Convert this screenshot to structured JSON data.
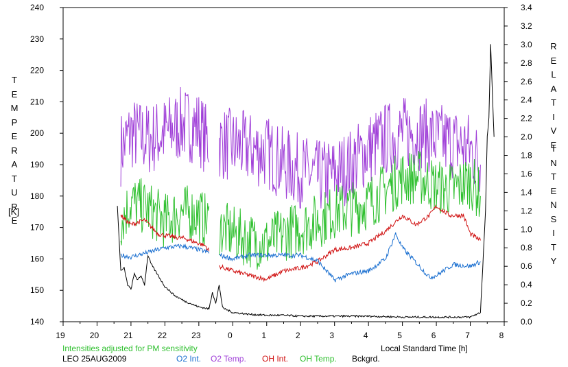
{
  "chart_data": {
    "type": "line",
    "left_axis_title_letters": "TEMPERATURE",
    "left_axis_unit": "[K]",
    "right_axis_title_line1": "RELATIVE",
    "right_axis_title_line2": "INTENSITY",
    "x_label": "Local Standard Time [h]",
    "note": "Intensities adjusted for PM sensitivity",
    "station_date": "LEO 25AUG2009",
    "x_ticks": [
      "19",
      "20",
      "21",
      "22",
      "23",
      "0",
      "1",
      "2",
      "3",
      "4",
      "5",
      "6",
      "7",
      "8"
    ],
    "x_range": [
      19,
      32
    ],
    "left_y_range": [
      140,
      240
    ],
    "left_y_ticks": [
      "140",
      "150",
      "160",
      "170",
      "180",
      "190",
      "200",
      "210",
      "220",
      "230",
      "240"
    ],
    "right_y_range": [
      0.0,
      3.4
    ],
    "right_y_ticks": [
      "0.0",
      "0.2",
      "0.4",
      "0.6",
      "0.8",
      "1.0",
      "1.2",
      "1.4",
      "1.6",
      "1.8",
      "2.0",
      "2.2",
      "2.4",
      "2.6",
      "2.8",
      "3.0",
      "3.2",
      "3.4"
    ],
    "legend": [
      {
        "label": "O2 Int.",
        "color": "#1a6fd0"
      },
      {
        "label": "O2 Temp.",
        "color": "#a040d8"
      },
      {
        "label": "OH Int.",
        "color": "#d01010"
      },
      {
        "label": "OH Temp.",
        "color": "#30c030"
      },
      {
        "label": "Bckgrd.",
        "color": "#000000"
      }
    ],
    "series": [
      {
        "key": "o2_temp",
        "axis": "left",
        "color": "#a040d8",
        "noise": 12,
        "points": [
          [
            20.7,
            195
          ],
          [
            21.0,
            200
          ],
          [
            21.5,
            198
          ],
          [
            22.0,
            200
          ],
          [
            22.5,
            203
          ],
          [
            23.0,
            202
          ],
          [
            23.2,
            198
          ],
          [
            23.6,
            197
          ],
          [
            24.0,
            196
          ],
          [
            24.5,
            195
          ],
          [
            25.0,
            194
          ],
          [
            25.5,
            190
          ],
          [
            26.0,
            188
          ],
          [
            26.5,
            186
          ],
          [
            27.0,
            187
          ],
          [
            27.5,
            190
          ],
          [
            28.0,
            195
          ],
          [
            28.5,
            198
          ],
          [
            29.0,
            200
          ],
          [
            29.5,
            200
          ],
          [
            30.0,
            198
          ],
          [
            30.5,
            197
          ],
          [
            31.0,
            195
          ],
          [
            31.3,
            190
          ]
        ]
      },
      {
        "key": "oh_temp",
        "axis": "left",
        "color": "#30c030",
        "noise": 9,
        "points": [
          [
            20.7,
            172
          ],
          [
            21.0,
            178
          ],
          [
            21.5,
            176
          ],
          [
            22.0,
            172
          ],
          [
            22.5,
            175
          ],
          [
            23.0,
            174
          ],
          [
            23.2,
            172
          ],
          [
            23.6,
            170
          ],
          [
            24.0,
            168
          ],
          [
            24.5,
            166
          ],
          [
            25.0,
            165
          ],
          [
            25.5,
            168
          ],
          [
            26.0,
            170
          ],
          [
            26.5,
            172
          ],
          [
            27.0,
            175
          ],
          [
            27.5,
            176
          ],
          [
            28.0,
            178
          ],
          [
            28.5,
            182
          ],
          [
            29.0,
            186
          ],
          [
            29.5,
            186
          ],
          [
            30.0,
            183
          ],
          [
            30.5,
            182
          ],
          [
            31.0,
            185
          ],
          [
            31.3,
            180
          ]
        ]
      },
      {
        "key": "oh_int",
        "axis": "right",
        "color": "#d01010",
        "noise": 0.025,
        "points": [
          [
            20.7,
            1.15
          ],
          [
            21.0,
            1.05
          ],
          [
            21.4,
            1.1
          ],
          [
            21.8,
            0.95
          ],
          [
            22.2,
            0.92
          ],
          [
            22.6,
            0.9
          ],
          [
            23.2,
            0.82
          ],
          [
            23.6,
            0.6
          ],
          [
            24.0,
            0.55
          ],
          [
            24.5,
            0.5
          ],
          [
            25.0,
            0.46
          ],
          [
            25.5,
            0.55
          ],
          [
            26.0,
            0.58
          ],
          [
            26.5,
            0.65
          ],
          [
            27.0,
            0.78
          ],
          [
            27.5,
            0.8
          ],
          [
            28.0,
            0.85
          ],
          [
            28.5,
            0.98
          ],
          [
            29.0,
            1.15
          ],
          [
            29.4,
            1.05
          ],
          [
            29.8,
            1.15
          ],
          [
            30.0,
            1.25
          ],
          [
            30.4,
            1.15
          ],
          [
            30.8,
            1.15
          ],
          [
            31.0,
            0.95
          ],
          [
            31.3,
            0.88
          ]
        ]
      },
      {
        "key": "o2_int",
        "axis": "right",
        "color": "#1a6fd0",
        "noise": 0.025,
        "points": [
          [
            20.7,
            0.72
          ],
          [
            21.0,
            0.7
          ],
          [
            21.5,
            0.75
          ],
          [
            22.0,
            0.8
          ],
          [
            22.5,
            0.82
          ],
          [
            23.0,
            0.78
          ],
          [
            23.2,
            0.76
          ],
          [
            23.6,
            0.72
          ],
          [
            24.0,
            0.68
          ],
          [
            24.5,
            0.72
          ],
          [
            25.0,
            0.72
          ],
          [
            25.5,
            0.72
          ],
          [
            26.0,
            0.72
          ],
          [
            26.5,
            0.66
          ],
          [
            27.0,
            0.45
          ],
          [
            27.5,
            0.52
          ],
          [
            28.0,
            0.55
          ],
          [
            28.5,
            0.68
          ],
          [
            28.8,
            0.95
          ],
          [
            29.0,
            0.8
          ],
          [
            29.5,
            0.6
          ],
          [
            29.8,
            0.48
          ],
          [
            30.0,
            0.5
          ],
          [
            30.5,
            0.62
          ],
          [
            31.0,
            0.6
          ],
          [
            31.3,
            0.65
          ]
        ]
      },
      {
        "key": "bckgrd",
        "axis": "right",
        "color": "#000000",
        "noise": 0.01,
        "points": [
          [
            20.6,
            1.25
          ],
          [
            20.7,
            0.55
          ],
          [
            20.8,
            0.58
          ],
          [
            20.9,
            0.4
          ],
          [
            21.0,
            0.35
          ],
          [
            21.1,
            0.52
          ],
          [
            21.2,
            0.45
          ],
          [
            21.3,
            0.5
          ],
          [
            21.4,
            0.4
          ],
          [
            21.5,
            0.72
          ],
          [
            21.6,
            0.62
          ],
          [
            21.8,
            0.5
          ],
          [
            22.0,
            0.38
          ],
          [
            22.3,
            0.28
          ],
          [
            22.6,
            0.22
          ],
          [
            23.0,
            0.16
          ],
          [
            23.3,
            0.14
          ],
          [
            23.4,
            0.32
          ],
          [
            23.5,
            0.2
          ],
          [
            23.6,
            0.4
          ],
          [
            23.7,
            0.15
          ],
          [
            24.0,
            0.1
          ],
          [
            24.5,
            0.08
          ],
          [
            25.0,
            0.07
          ],
          [
            25.5,
            0.07
          ],
          [
            26.0,
            0.06
          ],
          [
            27.0,
            0.06
          ],
          [
            28.0,
            0.06
          ],
          [
            29.0,
            0.05
          ],
          [
            30.0,
            0.05
          ],
          [
            31.0,
            0.05
          ],
          [
            31.3,
            0.1
          ],
          [
            31.45,
            1.2
          ],
          [
            31.5,
            2.0
          ],
          [
            31.55,
            2.2
          ],
          [
            31.6,
            3.0
          ],
          [
            31.65,
            2.5
          ],
          [
            31.7,
            2.0
          ]
        ]
      }
    ]
  }
}
